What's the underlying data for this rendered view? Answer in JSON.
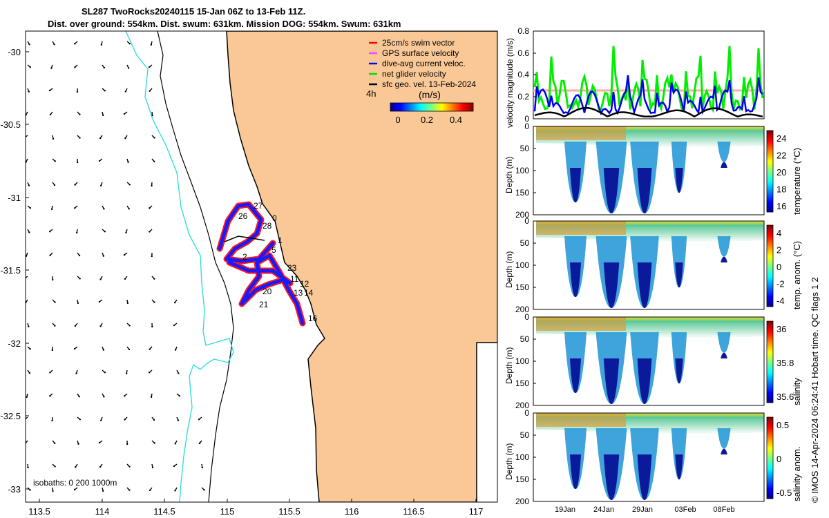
{
  "title": {
    "line1": "SL287 TwoRocks20240115 15-Jan 06Z to 13-Feb 11Z.",
    "line2": "Dist. over ground: 554km. Dist. swum: 631km. Mission DOG: 554km. Swum: 631km"
  },
  "map": {
    "lat_ticks": [
      "-30",
      "-30.5",
      "-31",
      "-31.5",
      "-32",
      "-32.5",
      "-33"
    ],
    "lon_ticks": [
      "113.5",
      "114",
      "114.5",
      "115",
      "115.5",
      "116",
      "116.5",
      "117"
    ],
    "legend": [
      {
        "label": "25cm/s swim vector",
        "color": "#ff0000"
      },
      {
        "label": "GPS surface velocity",
        "color": "#ff44ff"
      },
      {
        "label": "dive-avg current veloc.",
        "color": "#0000ff"
      },
      {
        "label": "net glider velocity",
        "color": "#00dd00"
      },
      {
        "label": "sfc geo. vel. 13-Feb-2024",
        "color": "#000000"
      }
    ],
    "time_step": "4h",
    "colorbar_label": "(m/s)",
    "colorbar_ticks": [
      "0",
      "0.2",
      "0.4"
    ],
    "isobath_label": "isobaths: 0   200  1000m",
    "track_day_labels": [
      "27",
      "26",
      "28",
      "5",
      "1",
      "0",
      "2",
      "23",
      "20",
      "21",
      "11",
      "12",
      "13",
      "14",
      "16"
    ]
  },
  "velocity_panel": {
    "ylabel": "velocity magnitude (m/s)",
    "yticks": [
      "0",
      "0.2",
      "0.4",
      "0.6",
      "0.8"
    ]
  },
  "sections": [
    {
      "name": "temperature",
      "cbar_label": "temperature (°C)",
      "cbar_ticks": [
        "24",
        "22",
        "20",
        "18",
        "16"
      ],
      "ylabel": "Depth (m)",
      "yticks": [
        "0",
        "50",
        "100",
        "150",
        "200"
      ]
    },
    {
      "name": "temp-anomaly",
      "cbar_label": "temp. anom. (°C)",
      "cbar_ticks": [
        "4",
        "2",
        "0",
        "-2",
        "-4"
      ],
      "ylabel": "Depth (m)",
      "yticks": [
        "0",
        "50",
        "100",
        "150",
        "200"
      ]
    },
    {
      "name": "salinity",
      "cbar_label": "salinity",
      "cbar_ticks": [
        "36",
        "35.8",
        "35.6"
      ],
      "ylabel": "Depth (m)",
      "yticks": [
        "0",
        "50",
        "100",
        "150",
        "200"
      ]
    },
    {
      "name": "salinity-anomaly",
      "cbar_label": "salinity anom.",
      "cbar_ticks": [
        "0.5",
        "0",
        "-0.5"
      ],
      "ylabel": "Depth (m)",
      "yticks": [
        "0",
        "50",
        "100",
        "150",
        "200"
      ]
    }
  ],
  "date_ticks": [
    "19Jan",
    "24Jan",
    "29Jan",
    "03Feb",
    "08Feb"
  ],
  "copyright": "© IMOS 14-Apr-2024 06:24:41 Hobart time. QC flags 1  2"
}
